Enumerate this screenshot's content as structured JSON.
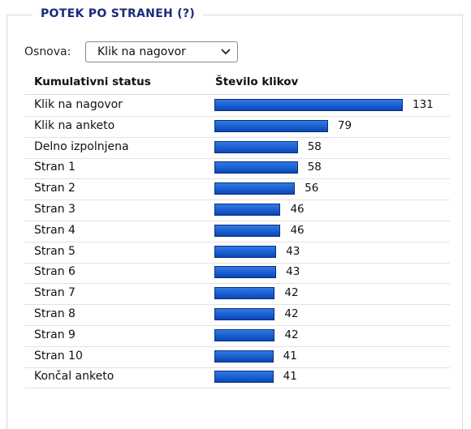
{
  "panel": {
    "title": "POTEK PO STRANEH (?)",
    "basis_label": "Osnova:",
    "basis_value": "Klik na nagovor"
  },
  "table": {
    "headers": [
      "Kumulativni status",
      "Število klikov"
    ],
    "rows": [
      {
        "label": "Klik na nagovor",
        "value": 131
      },
      {
        "label": "Klik na anketo",
        "value": 79
      },
      {
        "label": "Delno izpolnjena",
        "value": 58
      },
      {
        "label": "Stran 1",
        "value": 58
      },
      {
        "label": "Stran 2",
        "value": 56
      },
      {
        "label": "Stran 3",
        "value": 46
      },
      {
        "label": "Stran 4",
        "value": 46
      },
      {
        "label": "Stran 5",
        "value": 43
      },
      {
        "label": "Stran 6",
        "value": 43
      },
      {
        "label": "Stran 7",
        "value": 42
      },
      {
        "label": "Stran 8",
        "value": 42
      },
      {
        "label": "Stran 9",
        "value": 42
      },
      {
        "label": "Stran 10",
        "value": 41
      },
      {
        "label": "Končal anketo",
        "value": 41
      }
    ]
  }
}
